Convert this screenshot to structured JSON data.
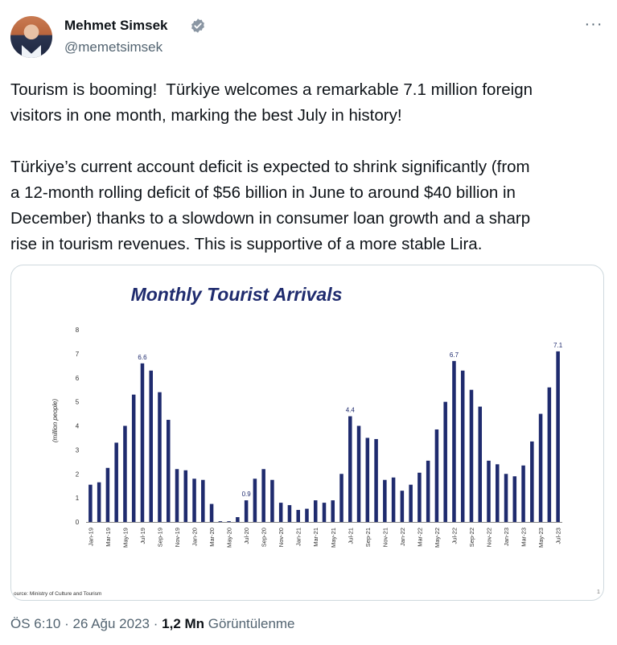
{
  "author": {
    "name": "Mehmet Simsek",
    "handle": "@memetsimsek",
    "verified_icon": "verified-badge-icon"
  },
  "menu": {
    "more_label": "···"
  },
  "tweet": {
    "text": "Tourism is booming!  Türkiye welcomes a remarkable 7.1 million foreign\nvisitors in one month, marking the best July in history!\n\nTürkiye’s current account deficit is expected to shrink significantly (from\na 12-month rolling deficit of $56 billion in June to around $40 billion in\nDecember) thanks to a slowdown in consumer loan growth and a sharp\nrise in tourism revenues. This is supportive of a more stable Lira."
  },
  "meta": {
    "time": "ÖS 6:10",
    "date": "26 Ağu 2023",
    "sep": "·",
    "views_count": "1,2 Mn",
    "views_label": "Görüntülenme"
  },
  "colors": {
    "bar": "#1f2b6e",
    "title": "#1f2b6e",
    "text": "#0f1419",
    "muted": "#536471"
  },
  "chart_data": {
    "type": "bar",
    "title": "Monthly Tourist Arrivals",
    "ylabel": "(million people)",
    "xlabel": "",
    "ylim": [
      0,
      8
    ],
    "yticks": [
      "0",
      "1",
      "2",
      "3",
      "4",
      "5",
      "6",
      "7",
      "8"
    ],
    "source": "ource: Ministry of Culture and Tourism",
    "page_number": "1",
    "categories": [
      "Jan-19",
      "Feb-19",
      "Mar-19",
      "Apr-19",
      "May-19",
      "Jun-19",
      "Jul-19",
      "Aug-19",
      "Sep-19",
      "Oct-19",
      "Nov-19",
      "Dec-19",
      "Jan-20",
      "Feb-20",
      "Mar-20",
      "Apr-20",
      "May-20",
      "Jun-20",
      "Jul-20",
      "Aug-20",
      "Sep-20",
      "Oct-20",
      "Nov-20",
      "Dec-20",
      "Jan-21",
      "Feb-21",
      "Mar-21",
      "Apr-21",
      "May-21",
      "Jun-21",
      "Jul-21",
      "Aug-21",
      "Sep-21",
      "Oct-21",
      "Nov-21",
      "Dec-21",
      "Jan-22",
      "Feb-22",
      "Mar-22",
      "Apr-22",
      "May-22",
      "Jun-22",
      "Jul-22",
      "Aug-22",
      "Sep-22",
      "Oct-22",
      "Nov-22",
      "Dec-22",
      "Jan-23",
      "Feb-23",
      "Mar-23",
      "Apr-23",
      "May-23",
      "Jun-23",
      "Jul-23"
    ],
    "values": [
      1.55,
      1.65,
      2.25,
      3.3,
      4.0,
      5.3,
      6.6,
      6.3,
      5.4,
      4.25,
      2.2,
      2.15,
      1.8,
      1.75,
      0.75,
      0.03,
      0.03,
      0.2,
      0.9,
      1.8,
      2.2,
      1.75,
      0.8,
      0.7,
      0.5,
      0.55,
      0.9,
      0.8,
      0.9,
      2.0,
      4.4,
      4.0,
      3.5,
      3.45,
      1.75,
      1.85,
      1.3,
      1.55,
      2.05,
      2.55,
      3.85,
      5.0,
      6.7,
      6.3,
      5.5,
      4.8,
      2.55,
      2.4,
      2.0,
      1.9,
      2.35,
      3.35,
      4.5,
      5.6,
      7.1
    ],
    "tick_labels": [
      "Jan-19",
      "Mar-19",
      "May-19",
      "Jul-19",
      "Sep-19",
      "Nov-19",
      "Jan-20",
      "Mar-20",
      "May-20",
      "Jul-20",
      "Sep-20",
      "Nov-20",
      "Jan-21",
      "Mar-21",
      "May-21",
      "Jul-21",
      "Sep-21",
      "Nov-21",
      "Jan-22",
      "Mar-22",
      "May-22",
      "Jul-22",
      "Sep-22",
      "Nov-22",
      "Jan-23",
      "Mar-23",
      "May-23",
      "Jul-23"
    ],
    "data_labels": [
      {
        "category": "Jul-19",
        "text": "6.6"
      },
      {
        "category": "Jul-20",
        "text": "0.9"
      },
      {
        "category": "Jul-21",
        "text": "4.4"
      },
      {
        "category": "Jul-22",
        "text": "6.7"
      },
      {
        "category": "Jul-23",
        "text": "7.1"
      }
    ],
    "grid": false,
    "legend": "none"
  }
}
